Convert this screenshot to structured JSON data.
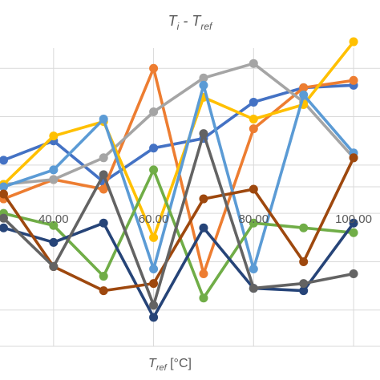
{
  "chart_data": {
    "type": "line",
    "title": {
      "main": "T",
      "sub1": "i",
      "sep": " - T",
      "sub2": "ref"
    },
    "xlabel": {
      "main": "T",
      "sub": "ref",
      "unit": " [°C]"
    },
    "x": [
      30,
      40,
      50,
      60,
      70,
      80,
      90,
      100
    ],
    "xlim": [
      28,
      104
    ],
    "ylim": [
      -7.5,
      5.5
    ],
    "x_tick_labels": [
      "40.00",
      "60.00",
      "80.00",
      "100.00"
    ],
    "x_ticks": [
      40,
      60,
      80,
      100
    ],
    "y_gridlines": [
      -6,
      -4,
      -2,
      0,
      2,
      4
    ],
    "grid": true,
    "series": [
      {
        "color": "#4472C4",
        "values": [
          0.2,
          1.0,
          -0.7,
          0.7,
          1.1,
          2.6,
          3.2,
          3.3
        ]
      },
      {
        "color": "#ED7D31",
        "values": [
          -1.4,
          -0.6,
          -1.0,
          4.0,
          -4.5,
          1.5,
          3.2,
          3.5
        ]
      },
      {
        "color": "#A5A5A5",
        "values": [
          -0.8,
          -0.6,
          0.3,
          2.2,
          3.6,
          4.2,
          2.6,
          0.3
        ]
      },
      {
        "color": "#FFC000",
        "values": [
          -0.8,
          1.2,
          1.8,
          -3.0,
          2.8,
          1.9,
          2.5,
          5.1
        ]
      },
      {
        "color": "#5B9BD5",
        "values": [
          -0.9,
          -0.2,
          1.9,
          -4.3,
          3.3,
          -4.3,
          2.9,
          0.5
        ]
      },
      {
        "color": "#70AD47",
        "values": [
          -2.0,
          -2.5,
          -4.6,
          -0.2,
          -5.5,
          -2.4,
          -2.6,
          -2.8
        ]
      },
      {
        "color": "#264478",
        "values": [
          -2.6,
          -3.2,
          -2.4,
          -6.3,
          -2.6,
          -5.1,
          -5.2,
          -2.4
        ]
      },
      {
        "color": "#9E480E",
        "values": [
          -1.2,
          -4.2,
          -5.2,
          -4.9,
          -1.4,
          -1.0,
          -4.0,
          0.3
        ]
      },
      {
        "color": "#636363",
        "values": [
          -2.2,
          -4.2,
          -0.4,
          -5.8,
          1.3,
          -5.1,
          -4.9,
          -4.5
        ]
      }
    ]
  }
}
